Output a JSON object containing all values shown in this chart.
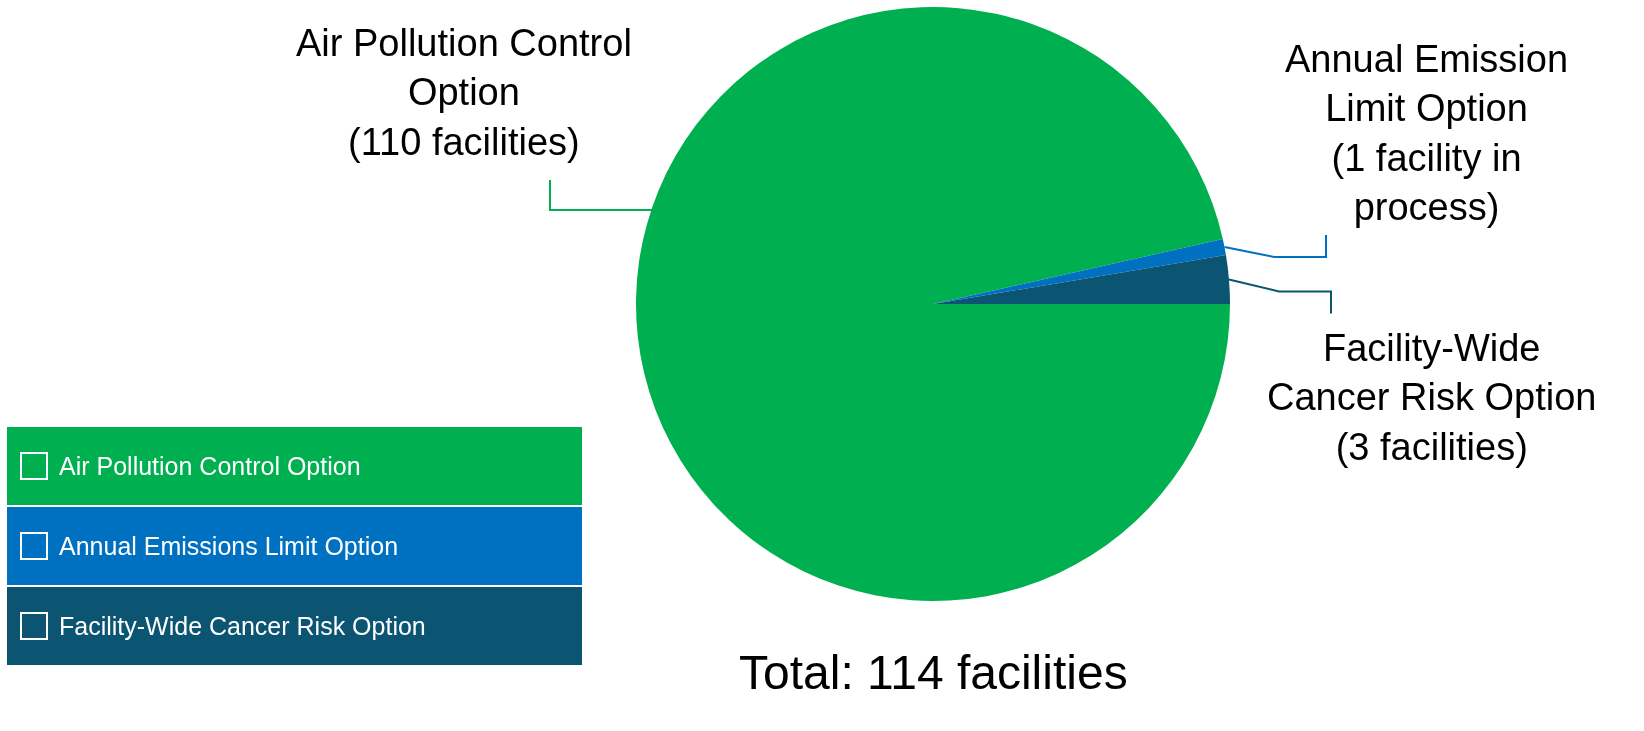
{
  "chart_data": {
    "type": "pie",
    "categories": [
      "Air Pollution Control Option",
      "Annual Emissions Limit Option",
      "Facility-Wide Cancer Risk Option"
    ],
    "values": [
      110,
      1,
      3
    ],
    "colors": [
      "#00b050",
      "#0070c0",
      "#0b5572"
    ],
    "value_labels": [
      "Air Pollution Control\nOption\n(110 facilities)",
      "Annual Emission\nLimit Option\n(1 facility in\nprocess)",
      "Facility-Wide\nCancer Risk Option\n(3 facilities)"
    ],
    "annotations": [
      "Total: 114 facilities"
    ],
    "legend": "bottom left"
  }
}
